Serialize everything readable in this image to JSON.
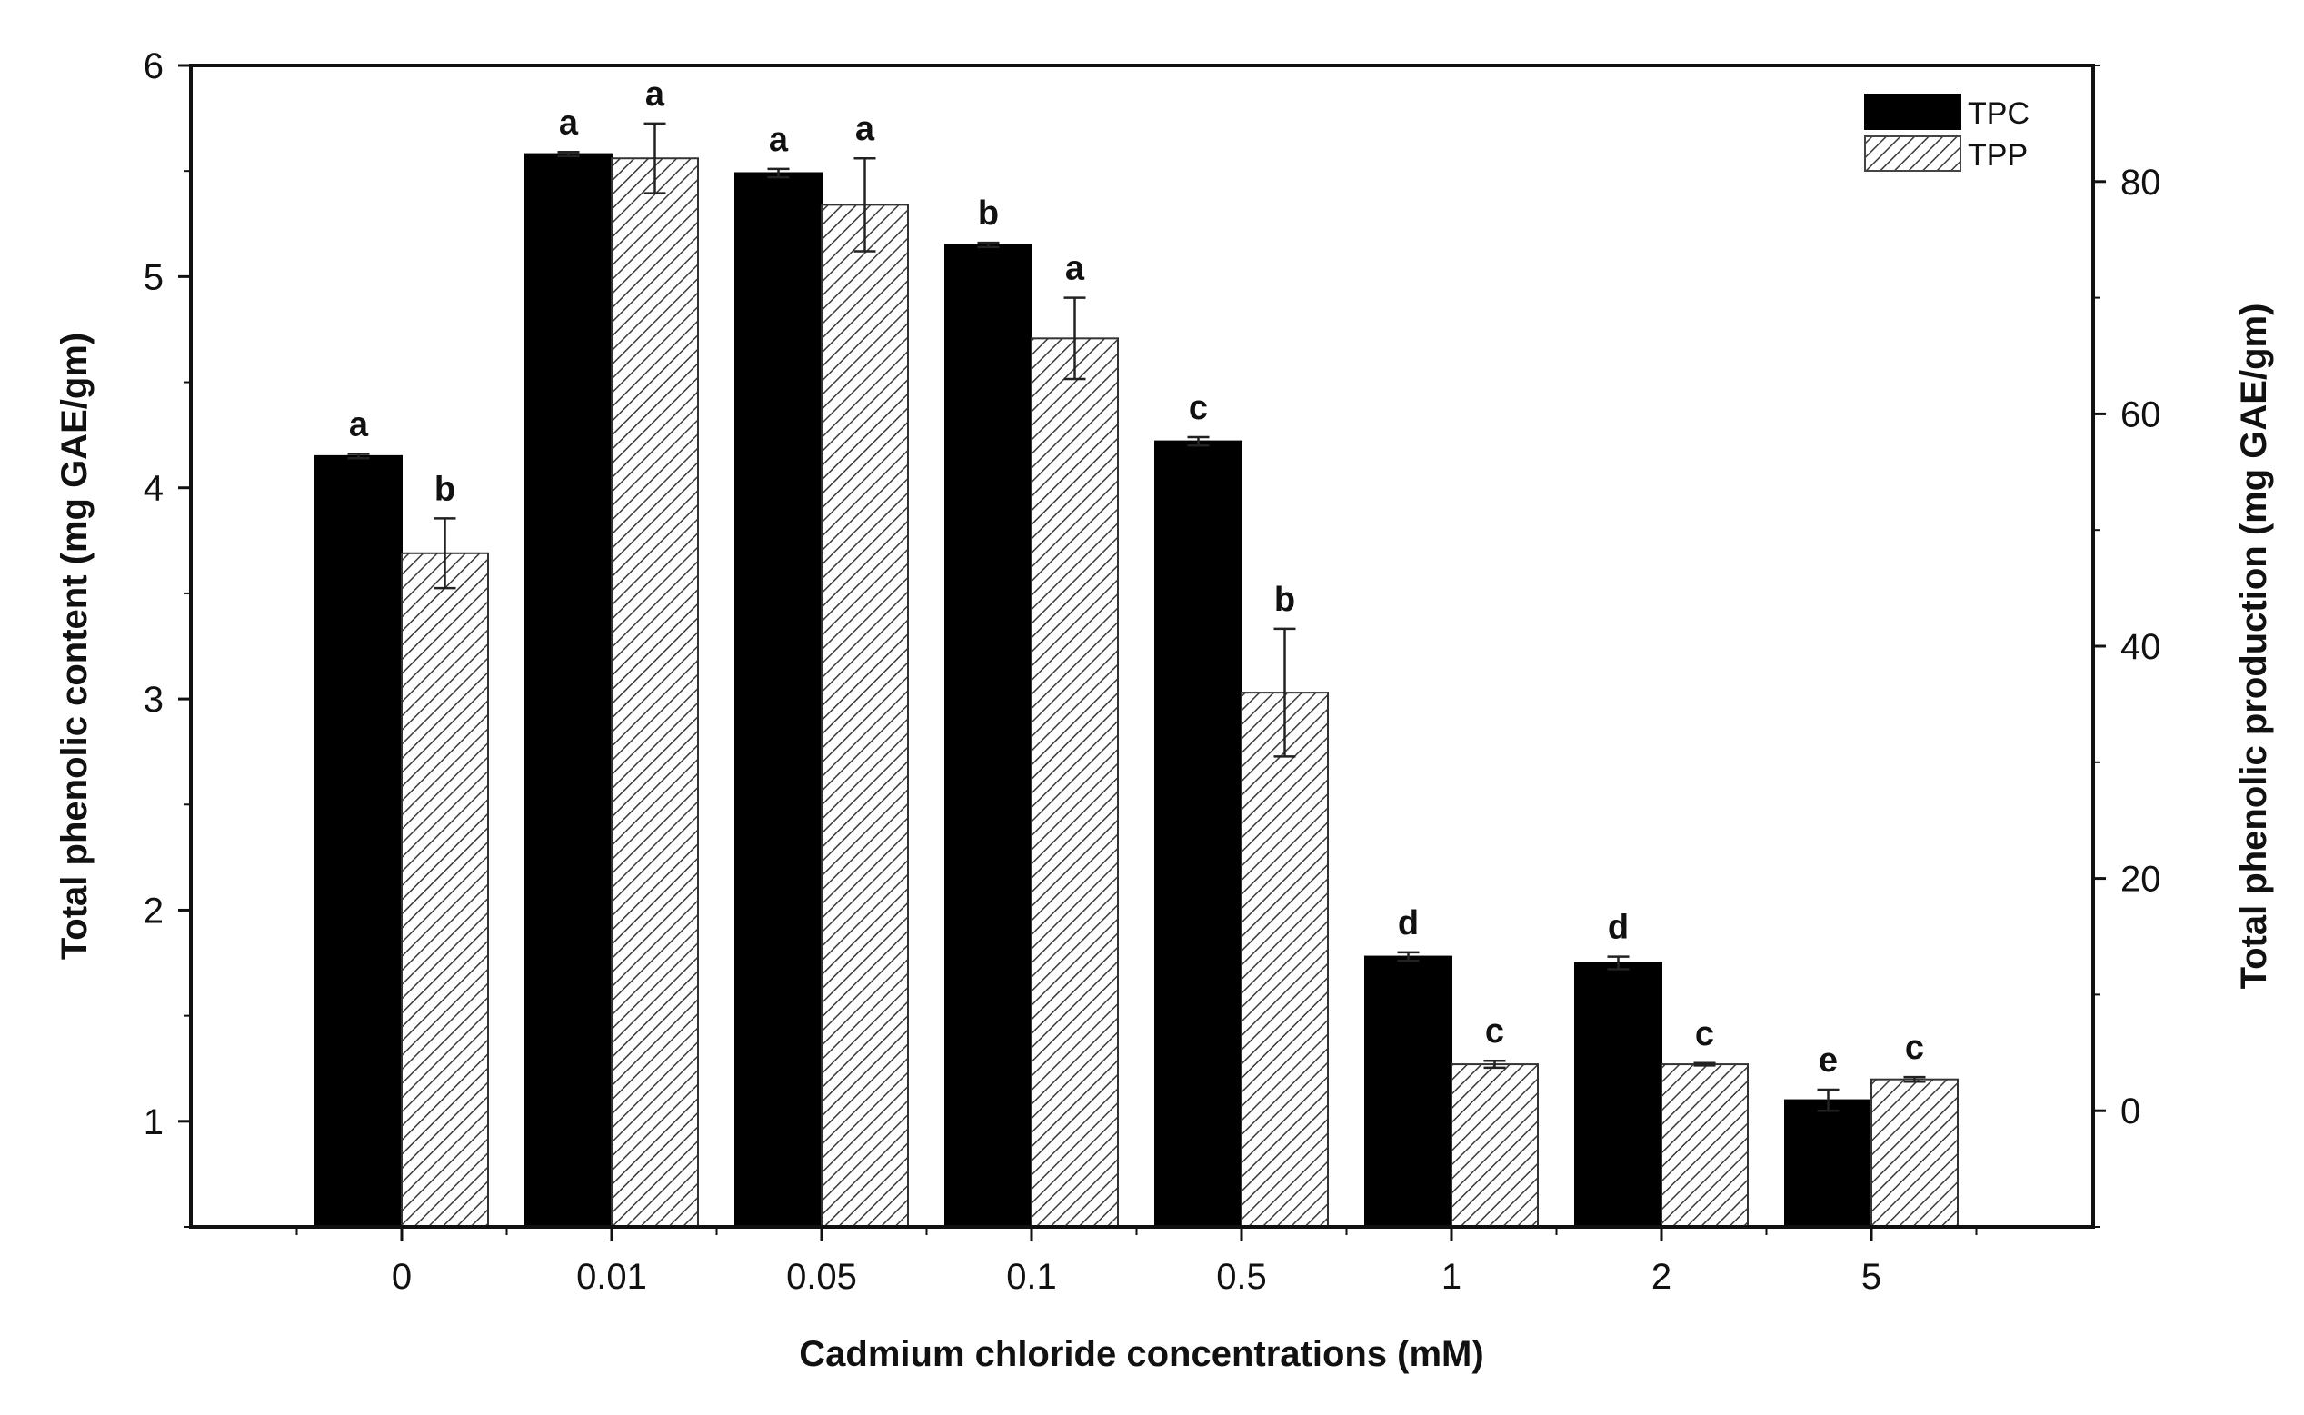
{
  "chart_data": {
    "type": "bar",
    "title": "",
    "xlabel": "Cadmium chloride concentrations (mM)",
    "ylabel_left": "Total phenolic content (mg GAE/gm)",
    "ylabel_right": "Total phenolic production (mg GAE/gm)",
    "categories": [
      "0",
      "0.01",
      "0.05",
      "0.1",
      "0.5",
      "1",
      "2",
      "5"
    ],
    "ylim_left": [
      0.5,
      6
    ],
    "yticks_left": [
      1,
      2,
      3,
      4,
      5,
      6
    ],
    "ylim_right": [
      -10,
      90
    ],
    "yticks_right": [
      0,
      20,
      40,
      60,
      80
    ],
    "legend_position": "top-right",
    "series": [
      {
        "name": "TPC",
        "axis": "left",
        "fill": "solid",
        "color": "#000000",
        "values": [
          4.15,
          5.58,
          5.49,
          5.15,
          4.22,
          1.78,
          1.75,
          1.1
        ],
        "errors": [
          0.01,
          0.01,
          0.02,
          0.01,
          0.02,
          0.02,
          0.03,
          0.05
        ],
        "significance": [
          "a",
          "a",
          "a",
          "b",
          "c",
          "d",
          "d",
          "e"
        ]
      },
      {
        "name": "TPP",
        "axis": "right",
        "fill": "hatched",
        "color": "#444444",
        "values": [
          48.0,
          82.0,
          78.0,
          66.5,
          36.0,
          4.0,
          4.0,
          2.7
        ],
        "errors": [
          3.0,
          3.0,
          4.0,
          3.5,
          5.5,
          0.3,
          0.1,
          0.2
        ],
        "significance": [
          "b",
          "a",
          "a",
          "a",
          "b",
          "c",
          "c",
          "c"
        ]
      }
    ]
  }
}
